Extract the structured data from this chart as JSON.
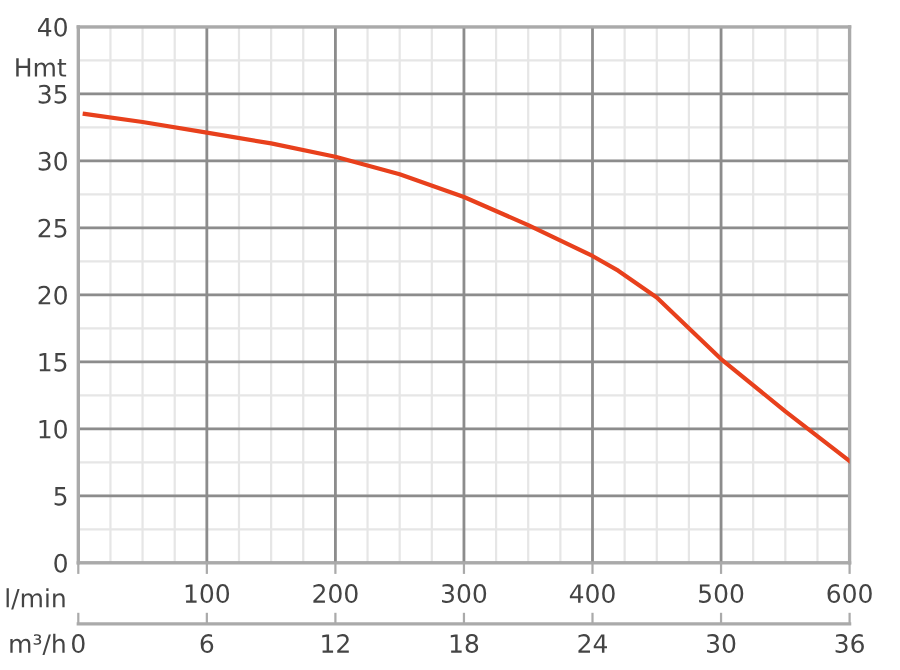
{
  "chart_data": {
    "type": "line",
    "xlabel": "l/min",
    "ylabel": "Hmt",
    "x2label": "m³/h",
    "series": [
      {
        "color": "#e8401c",
        "x": [
          5,
          50,
          100,
          150,
          200,
          250,
          300,
          350,
          400,
          420,
          450,
          500,
          550,
          600
        ],
        "values": [
          33.5,
          32.9,
          32.1,
          31.3,
          30.3,
          29.0,
          27.3,
          25.2,
          22.9,
          21.8,
          19.8,
          15.2,
          11.3,
          7.6
        ]
      }
    ],
    "xlim": [
      0,
      600
    ],
    "xticks": [
      {
        "value": 0,
        "label": null
      },
      100,
      200,
      300,
      400,
      500,
      600
    ],
    "x2lim": [
      0,
      36
    ],
    "x2ticks": [
      0,
      6,
      12,
      18,
      24,
      30,
      36
    ],
    "ylim": [
      0,
      40
    ],
    "yticks": [
      0,
      5,
      10,
      15,
      20,
      25,
      30,
      35,
      40
    ],
    "grid": true,
    "marker": "none",
    "line_style": "solid"
  }
}
